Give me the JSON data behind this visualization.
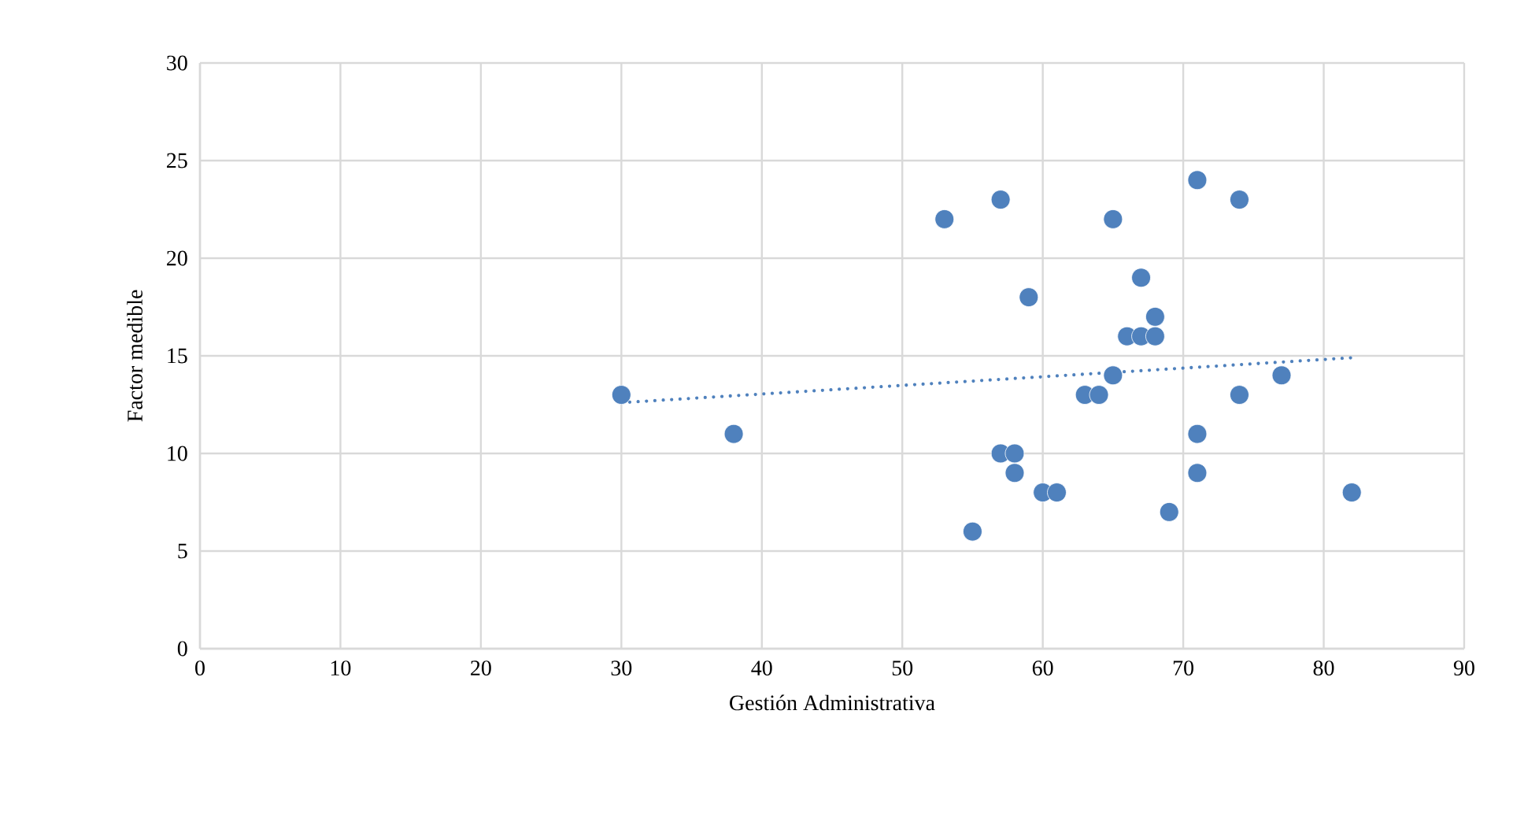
{
  "chart_data": {
    "type": "scatter",
    "xlabel": "Gestión Administrativa",
    "ylabel": "Factor medible",
    "xlim": [
      0,
      90
    ],
    "xticks": [
      0,
      10,
      20,
      30,
      40,
      50,
      60,
      70,
      80,
      90
    ],
    "ylim": [
      0,
      30
    ],
    "yticks": [
      0,
      5,
      10,
      15,
      20,
      25,
      30
    ],
    "grid": true,
    "legend": false,
    "series": [
      {
        "marker": "circle",
        "color": "#4f81bd",
        "x": [
          30,
          38,
          53,
          55,
          57,
          57,
          58,
          58,
          59,
          60,
          61,
          63,
          64,
          65,
          65,
          66,
          67,
          67,
          68,
          68,
          69,
          71,
          71,
          71,
          74,
          74,
          77,
          82
        ],
        "values": [
          13,
          11,
          22,
          6,
          23,
          10,
          10,
          9,
          18,
          8,
          8,
          13,
          13,
          22,
          14,
          16,
          16,
          19,
          17,
          16,
          7,
          24,
          11,
          9,
          23,
          13,
          14,
          8
        ]
      },
      {
        "type": "line",
        "marker": "none",
        "line_style": "dotted",
        "color": "#4f81bd",
        "x": [
          30,
          82
        ],
        "values": [
          12.6,
          14.9
        ]
      }
    ]
  }
}
